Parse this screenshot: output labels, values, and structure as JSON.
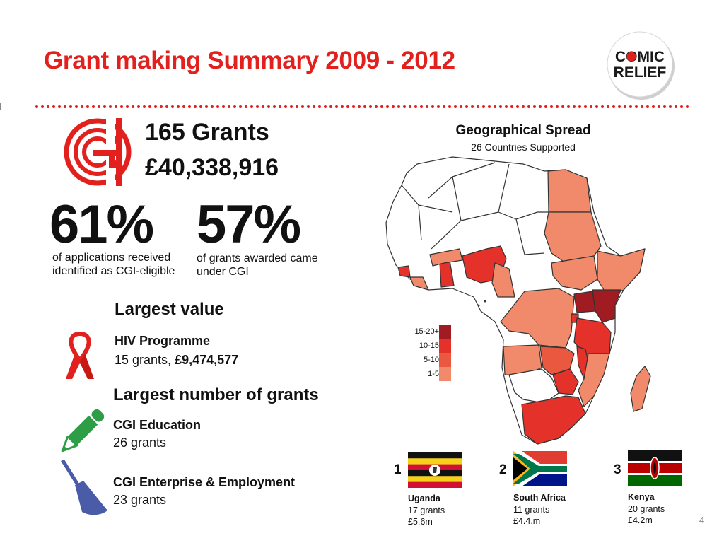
{
  "header": {
    "title": "Grant making Summary 2009 - 2012",
    "logo_line1": "COMIC",
    "logo_line2": "RELIEF"
  },
  "summary": {
    "grants_count": "165 Grants",
    "grants_total": "£40,338,916",
    "stat1": {
      "value": "61%",
      "caption_line1": "of  applications received",
      "caption_line2": "identified as CGI-eligible"
    },
    "stat2": {
      "value": "57%",
      "caption_line1": "of grants awarded came",
      "caption_line2": "under CGI"
    }
  },
  "largest_value": {
    "heading": "Largest value",
    "title": "HIV Programme",
    "grants": "15 grants,",
    "amount": "£9,474,577"
  },
  "largest_number": {
    "heading": "Largest number of grants",
    "items": [
      {
        "title": "CGI Education",
        "grants": "26 grants"
      },
      {
        "title": "CGI Enterprise & Employment",
        "grants": "23 grants"
      }
    ]
  },
  "map": {
    "title": "Geographical Spread",
    "subtitle": "26 Countries Supported",
    "legend": [
      {
        "label": "15-20+",
        "color": "#a11c22"
      },
      {
        "label": "10-15",
        "color": "#e4322b"
      },
      {
        "label": "5-10",
        "color": "#ea5840"
      },
      {
        "label": "1-5",
        "color": "#f08a6a"
      }
    ]
  },
  "top_countries": [
    {
      "rank": "1",
      "name": "Uganda",
      "grants": "17 grants",
      "amount": "£5.6m"
    },
    {
      "rank": "2",
      "name": "South Africa",
      "grants": "11 grants",
      "amount": "£4.4.m"
    },
    {
      "rank": "3",
      "name": "Kenya",
      "grants": "20 grants",
      "amount": "£4.2m"
    }
  ],
  "colors": {
    "accent_red": "#e2201d",
    "education_green": "#2e9e46",
    "enterprise_blue": "#4a5ba8"
  },
  "icons": [
    "cgi-logo-icon",
    "ribbon-icon",
    "pencil-icon",
    "trowel-icon"
  ],
  "page_number": "4"
}
